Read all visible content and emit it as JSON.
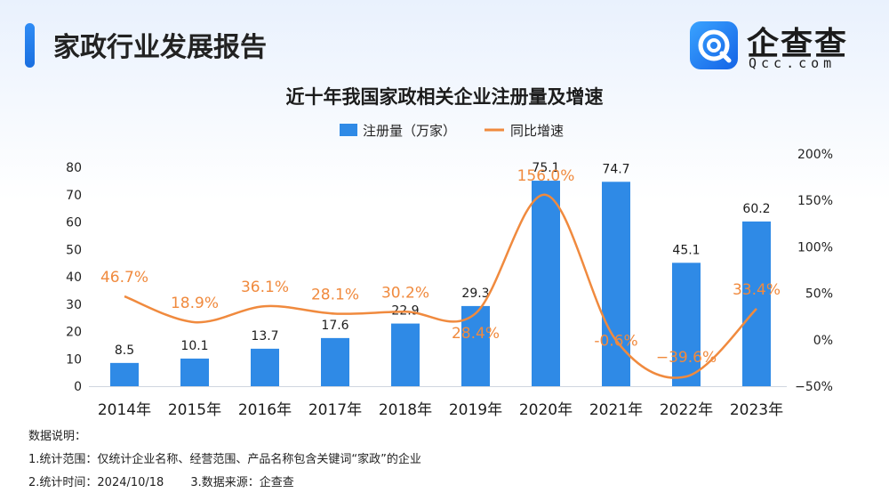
{
  "header": {
    "title": "家政行业发展报告",
    "logo_text": "企查查",
    "logo_sub": "Qcc.com",
    "accent_color": "#1f7ae8"
  },
  "chart_data": {
    "type": "bar",
    "title": "近十年我国家政相关企业注册量及增速",
    "categories": [
      "2014年",
      "2015年",
      "2016年",
      "2017年",
      "2018年",
      "2019年",
      "2020年",
      "2021年",
      "2022年",
      "2023年"
    ],
    "legend_position": "top",
    "grid": false,
    "series": [
      {
        "name": "注册量（万家）",
        "type": "bar",
        "axis": "left",
        "color": "#2f8ae6",
        "values": [
          8.5,
          10.1,
          13.7,
          17.6,
          22.9,
          29.3,
          75.1,
          74.7,
          45.1,
          60.2
        ],
        "labels": [
          "8.5",
          "10.1",
          "13.7",
          "17.6",
          "22.9",
          "29.3",
          "75.1",
          "74.7",
          "45.1",
          "60.2"
        ]
      },
      {
        "name": "同比增速",
        "type": "line",
        "axis": "right",
        "color": "#f08a3e",
        "values": [
          46.7,
          18.9,
          36.1,
          28.1,
          30.2,
          28.4,
          156.0,
          -0.6,
          -39.6,
          33.4
        ],
        "labels": [
          "46.7%",
          "18.9%",
          "36.1%",
          "28.1%",
          "30.2%",
          "28.4%",
          "156.0%",
          "-0.6%",
          "−39.6%",
          "33.4%"
        ]
      }
    ],
    "y_left": {
      "ylim": [
        0,
        80
      ],
      "ticks": [
        "0",
        "10",
        "20",
        "30",
        "40",
        "50",
        "60",
        "70",
        "80"
      ]
    },
    "y_right": {
      "ylim": [
        -50,
        200
      ],
      "ticks": [
        "−50%",
        "0%",
        "50%",
        "100%",
        "150%",
        "200%"
      ]
    }
  },
  "notes": {
    "heading": "数据说明：",
    "line1": "1.统计范围：仅统计企业名称、经营范围、产品名称包含关键词“家政”的企业",
    "line2_time": "2.统计时间：2024/10/18",
    "line2_source": "3.数据来源：企查查"
  }
}
